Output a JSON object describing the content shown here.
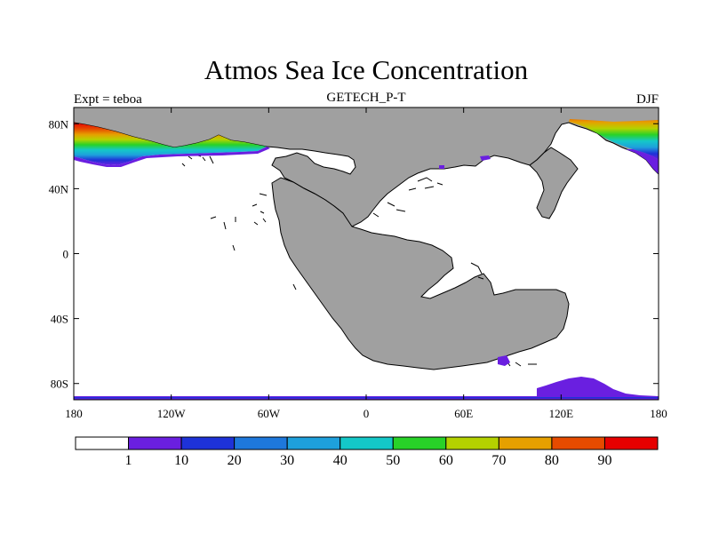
{
  "title": "Atmos Sea Ice Concentration",
  "subtitle": "GETECH_P-T",
  "left_label": "Expt = teboa",
  "right_label": "DJF",
  "map": {
    "lon_range": [
      -180,
      180
    ],
    "lat_range": [
      -90,
      90
    ],
    "lat_ticks": [
      {
        "value": 80,
        "label": "80N"
      },
      {
        "value": 40,
        "label": "40N"
      },
      {
        "value": 0,
        "label": "0"
      },
      {
        "value": -40,
        "label": "40S"
      },
      {
        "value": -80,
        "label": "80S"
      }
    ],
    "lon_ticks": [
      {
        "value": -180,
        "label": "180"
      },
      {
        "value": -120,
        "label": "120W"
      },
      {
        "value": -60,
        "label": "60W"
      },
      {
        "value": 0,
        "label": "0"
      },
      {
        "value": 60,
        "label": "60E"
      },
      {
        "value": 120,
        "label": "120E"
      },
      {
        "value": 180,
        "label": "180"
      }
    ],
    "land_color": "#a0a0a0",
    "ocean_color": "#ffffff"
  },
  "colorbar": {
    "colors": [
      "#ffffff",
      "#6a1fe0",
      "#1e32d8",
      "#1e78dc",
      "#1ea0dc",
      "#14c8c8",
      "#28d228",
      "#b4d200",
      "#e6a000",
      "#e64b00",
      "#e60000"
    ],
    "labels": [
      "1",
      "10",
      "20",
      "30",
      "40",
      "50",
      "60",
      "70",
      "80",
      "90"
    ]
  }
}
